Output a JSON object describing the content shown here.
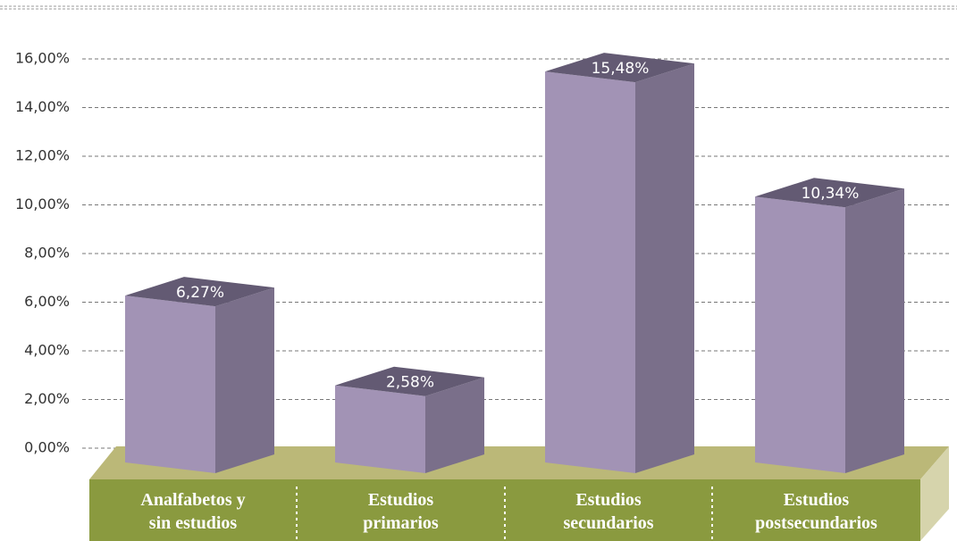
{
  "chart_data": {
    "type": "bar3d",
    "categories": [
      "Analfabetos y\nsin estudios",
      "Estudios\nprimarios",
      "Estudios\nsecundarios",
      "Estudios\npostsecundarios"
    ],
    "values": [
      6.27,
      2.58,
      15.48,
      10.34
    ],
    "value_labels": [
      "6,27%",
      "2,58%",
      "15,48%",
      "10,34%"
    ],
    "colors": {
      "front": "#a293b5",
      "side": "#7a6f8a",
      "top": "#635a73"
    },
    "ylim": [
      0,
      16
    ],
    "yticks": [
      {
        "value": 0,
        "label": "0,00%"
      },
      {
        "value": 2,
        "label": "2,00%"
      },
      {
        "value": 4,
        "label": "4,00%"
      },
      {
        "value": 6,
        "label": "6,00%"
      },
      {
        "value": 8,
        "label": "8,00%"
      },
      {
        "value": 10,
        "label": "10,00%"
      },
      {
        "value": 12,
        "label": "12,00%"
      },
      {
        "value": 14,
        "label": "14,00%"
      },
      {
        "value": 16,
        "label": "16,00%"
      }
    ],
    "grid": true
  }
}
